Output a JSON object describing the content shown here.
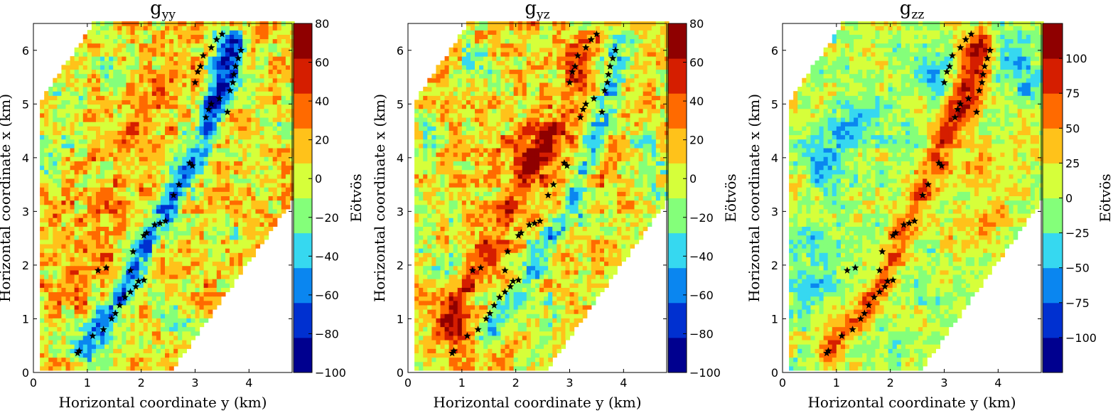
{
  "colors": {
    "scale": [
      "#00008f",
      "#0030d0",
      "#0a86f0",
      "#36d8f0",
      "#84ff7a",
      "#d6ff3a",
      "#ffc21a",
      "#ff6a00",
      "#d51e00",
      "#8f0000"
    ]
  },
  "chart_data": [
    {
      "type": "heatmap",
      "title_main": "g",
      "title_sub": "yy",
      "xlabel": "Horizontal coordinate y (km)",
      "ylabel": "Horizontal coordinate x (km)",
      "colorbar_label": "Eötvös",
      "x_ticks": [
        0,
        1,
        2,
        3,
        4
      ],
      "y_ticks": [
        0,
        1,
        2,
        3,
        4,
        5,
        6
      ],
      "xlim": [
        0,
        4.8
      ],
      "ylim": [
        0,
        6.5
      ],
      "vmin": -100,
      "vmax": 80,
      "colorbar_ticks": [
        80,
        60,
        40,
        20,
        0,
        -20,
        -40,
        -60,
        -80,
        -100
      ],
      "colorbar_tick_labels": [
        "80",
        "60",
        "40",
        "20",
        "0",
        "−20",
        "−40",
        "−60",
        "−80",
        "−100"
      ],
      "background_level": 10,
      "features": [
        {
          "shape": "ridge",
          "level": -55,
          "points": [
            [
              0.85,
              0.35
            ],
            [
              1.6,
              1.4
            ],
            [
              2.1,
              2.4
            ],
            [
              2.9,
              3.8
            ],
            [
              3.6,
              5.5
            ],
            [
              3.75,
              6.0
            ]
          ]
        },
        {
          "shape": "ridge",
          "level": -45,
          "points": [
            [
              3.2,
              5.0
            ],
            [
              3.55,
              6.2
            ]
          ]
        },
        {
          "shape": "blob",
          "level": 35,
          "points": [
            [
              0.6,
              1.3
            ],
            [
              1.1,
              2.2
            ],
            [
              1.4,
              3.1
            ],
            [
              1.7,
              4.3
            ],
            [
              2.2,
              5.0
            ],
            [
              2.8,
              5.6
            ]
          ]
        },
        {
          "shape": "blob",
          "level": -15,
          "points": [
            [
              0.2,
              4.0
            ],
            [
              0.4,
              4.8
            ],
            [
              0.5,
              0.8
            ],
            [
              2.6,
              0.9
            ],
            [
              3.6,
              2.5
            ],
            [
              4.2,
              3.6
            ],
            [
              1.3,
              5.6
            ],
            [
              4.5,
              4.7
            ]
          ]
        }
      ],
      "stars": [
        [
          0.82,
          0.36
        ],
        [
          0.85,
          0.4
        ],
        [
          1.1,
          0.68
        ],
        [
          1.3,
          0.8
        ],
        [
          1.45,
          1.0
        ],
        [
          1.52,
          1.1
        ],
        [
          1.6,
          1.25
        ],
        [
          1.7,
          1.4
        ],
        [
          1.8,
          1.5
        ],
        [
          1.9,
          1.6
        ],
        [
          1.95,
          1.7
        ],
        [
          2.05,
          1.72
        ],
        [
          1.2,
          1.9
        ],
        [
          1.35,
          1.95
        ],
        [
          1.8,
          1.9
        ],
        [
          1.85,
          2.25
        ],
        [
          2.05,
          2.55
        ],
        [
          2.1,
          2.6
        ],
        [
          2.25,
          2.75
        ],
        [
          2.35,
          2.78
        ],
        [
          2.45,
          2.82
        ],
        [
          2.6,
          3.3
        ],
        [
          2.7,
          3.5
        ],
        [
          2.9,
          3.9
        ],
        [
          2.95,
          3.85
        ],
        [
          3.0,
          5.4
        ],
        [
          3.05,
          5.6
        ],
        [
          3.1,
          5.7
        ],
        [
          3.15,
          5.9
        ],
        [
          3.3,
          6.05
        ],
        [
          3.4,
          6.2
        ],
        [
          3.5,
          6.3
        ],
        [
          3.2,
          4.75
        ],
        [
          3.25,
          4.9
        ],
        [
          3.3,
          5.0
        ],
        [
          3.45,
          5.1
        ],
        [
          3.6,
          4.85
        ],
        [
          3.65,
          5.25
        ],
        [
          3.7,
          5.4
        ],
        [
          3.72,
          5.55
        ],
        [
          3.75,
          5.7
        ],
        [
          3.8,
          5.85
        ],
        [
          3.85,
          6.0
        ]
      ]
    },
    {
      "type": "heatmap",
      "title_main": "g",
      "title_sub": "yz",
      "xlabel": "Horizontal coordinate y (km)",
      "ylabel": "Horizontal coordinate x (km)",
      "colorbar_label": "Eötvös",
      "x_ticks": [
        0,
        1,
        2,
        3,
        4
      ],
      "y_ticks": [
        0,
        1,
        2,
        3,
        4,
        5,
        6
      ],
      "xlim": [
        0,
        4.8
      ],
      "ylim": [
        0,
        6.5
      ],
      "vmin": -100,
      "vmax": 80,
      "colorbar_ticks": [
        80,
        60,
        40,
        20,
        0,
        -20,
        -40,
        -60,
        -80,
        -100
      ],
      "colorbar_tick_labels": [
        "80",
        "60",
        "40",
        "20",
        "0",
        "−20",
        "−40",
        "−60",
        "−80",
        "−100"
      ],
      "background_level": 10,
      "features": [
        {
          "shape": "ridge",
          "level": 45,
          "points": [
            [
              0.6,
              0.9
            ],
            [
              1.2,
              1.8
            ],
            [
              1.7,
              2.7
            ],
            [
              2.2,
              3.6
            ],
            [
              2.9,
              4.8
            ],
            [
              3.2,
              6.0
            ]
          ]
        },
        {
          "shape": "ridge",
          "level": -35,
          "points": [
            [
              1.4,
              0.7
            ],
            [
              2.0,
              1.5
            ],
            [
              2.5,
              2.3
            ],
            [
              3.0,
              2.9
            ],
            [
              3.7,
              5.2
            ],
            [
              3.95,
              6.1
            ]
          ]
        },
        {
          "shape": "blob",
          "level": -15,
          "points": [
            [
              0.2,
              4.5
            ],
            [
              0.4,
              3.0
            ],
            [
              0.5,
              2.0
            ],
            [
              1.3,
              5.7
            ],
            [
              4.4,
              4.2
            ],
            [
              4.6,
              3.4
            ],
            [
              2.6,
              1.1
            ]
          ]
        },
        {
          "shape": "blob",
          "level": 40,
          "points": [
            [
              2.2,
              4.2
            ],
            [
              2.4,
              4.0
            ],
            [
              3.6,
              3.8
            ],
            [
              0.8,
              0.8
            ]
          ]
        }
      ],
      "stars": [
        [
          0.82,
          0.36
        ],
        [
          0.85,
          0.4
        ],
        [
          1.1,
          0.68
        ],
        [
          1.3,
          0.8
        ],
        [
          1.45,
          1.0
        ],
        [
          1.52,
          1.1
        ],
        [
          1.6,
          1.25
        ],
        [
          1.7,
          1.4
        ],
        [
          1.8,
          1.5
        ],
        [
          1.9,
          1.6
        ],
        [
          1.95,
          1.7
        ],
        [
          2.05,
          1.72
        ],
        [
          1.2,
          1.9
        ],
        [
          1.35,
          1.95
        ],
        [
          1.8,
          1.9
        ],
        [
          1.85,
          2.25
        ],
        [
          2.05,
          2.55
        ],
        [
          2.1,
          2.6
        ],
        [
          2.25,
          2.75
        ],
        [
          2.35,
          2.78
        ],
        [
          2.45,
          2.82
        ],
        [
          2.6,
          3.3
        ],
        [
          2.7,
          3.5
        ],
        [
          2.9,
          3.9
        ],
        [
          2.95,
          3.85
        ],
        [
          3.0,
          5.4
        ],
        [
          3.05,
          5.6
        ],
        [
          3.1,
          5.7
        ],
        [
          3.15,
          5.9
        ],
        [
          3.3,
          6.05
        ],
        [
          3.4,
          6.2
        ],
        [
          3.5,
          6.3
        ],
        [
          3.2,
          4.75
        ],
        [
          3.25,
          4.9
        ],
        [
          3.3,
          5.0
        ],
        [
          3.45,
          5.1
        ],
        [
          3.6,
          4.85
        ],
        [
          3.65,
          5.25
        ],
        [
          3.7,
          5.4
        ],
        [
          3.72,
          5.55
        ],
        [
          3.75,
          5.7
        ],
        [
          3.8,
          5.85
        ],
        [
          3.85,
          6.0
        ]
      ]
    },
    {
      "type": "heatmap",
      "title_main": "g",
      "title_sub": "zz",
      "xlabel": "Horizontal coordinate y (km)",
      "ylabel": "Horizontal coordinate x (km)",
      "colorbar_label": "Eötvös",
      "x_ticks": [
        0,
        1,
        2,
        3,
        4
      ],
      "y_ticks": [
        0,
        1,
        2,
        3,
        4,
        5,
        6
      ],
      "xlim": [
        0,
        4.8
      ],
      "ylim": [
        0,
        6.5
      ],
      "vmin": -125,
      "vmax": 125,
      "colorbar_ticks": [
        100,
        75,
        50,
        25,
        0,
        -25,
        -50,
        -75,
        -100
      ],
      "colorbar_tick_labels": [
        "100",
        "75",
        "50",
        "25",
        "0",
        "−25",
        "−50",
        "−75",
        "−100"
      ],
      "background_level": 5,
      "features": [
        {
          "shape": "ridge",
          "level": 70,
          "points": [
            [
              0.85,
              0.35
            ],
            [
              1.4,
              1.1
            ],
            [
              1.8,
              1.6
            ],
            [
              2.2,
              2.6
            ],
            [
              2.8,
              3.8
            ],
            [
              3.3,
              5.4
            ],
            [
              3.6,
              6.2
            ]
          ]
        },
        {
          "shape": "ridge",
          "level": 70,
          "points": [
            [
              3.4,
              4.8
            ],
            [
              3.7,
              6.0
            ]
          ]
        },
        {
          "shape": "blob",
          "level": -45,
          "points": [
            [
              0.4,
              4.0
            ],
            [
              0.8,
              3.6
            ],
            [
              1.1,
              4.5
            ],
            [
              1.6,
              4.8
            ],
            [
              0.5,
              1.6
            ],
            [
              0.5,
              2.4
            ],
            [
              2.8,
              5.5
            ],
            [
              4.2,
              6.0
            ],
            [
              4.5,
              5.3
            ]
          ]
        },
        {
          "shape": "blob",
          "level": 40,
          "points": [
            [
              0.2,
              3.6
            ],
            [
              3.5,
              3.8
            ],
            [
              4.4,
              4.3
            ],
            [
              3.4,
              2.6
            ],
            [
              4.0,
              2.9
            ]
          ]
        }
      ],
      "stars": [
        [
          0.82,
          0.36
        ],
        [
          0.85,
          0.4
        ],
        [
          1.1,
          0.68
        ],
        [
          1.3,
          0.8
        ],
        [
          1.45,
          1.0
        ],
        [
          1.52,
          1.1
        ],
        [
          1.6,
          1.25
        ],
        [
          1.7,
          1.4
        ],
        [
          1.8,
          1.5
        ],
        [
          1.9,
          1.6
        ],
        [
          1.95,
          1.7
        ],
        [
          2.05,
          1.72
        ],
        [
          1.2,
          1.9
        ],
        [
          1.35,
          1.95
        ],
        [
          1.8,
          1.9
        ],
        [
          1.85,
          2.25
        ],
        [
          2.05,
          2.55
        ],
        [
          2.1,
          2.6
        ],
        [
          2.25,
          2.75
        ],
        [
          2.35,
          2.78
        ],
        [
          2.45,
          2.82
        ],
        [
          2.6,
          3.3
        ],
        [
          2.7,
          3.5
        ],
        [
          2.9,
          3.9
        ],
        [
          2.95,
          3.85
        ],
        [
          3.0,
          5.4
        ],
        [
          3.05,
          5.6
        ],
        [
          3.1,
          5.7
        ],
        [
          3.15,
          5.9
        ],
        [
          3.3,
          6.05
        ],
        [
          3.4,
          6.2
        ],
        [
          3.5,
          6.3
        ],
        [
          3.2,
          4.75
        ],
        [
          3.25,
          4.9
        ],
        [
          3.3,
          5.0
        ],
        [
          3.45,
          5.1
        ],
        [
          3.6,
          4.85
        ],
        [
          3.65,
          5.25
        ],
        [
          3.7,
          5.4
        ],
        [
          3.72,
          5.55
        ],
        [
          3.75,
          5.7
        ],
        [
          3.8,
          5.85
        ],
        [
          3.85,
          6.0
        ]
      ]
    }
  ]
}
